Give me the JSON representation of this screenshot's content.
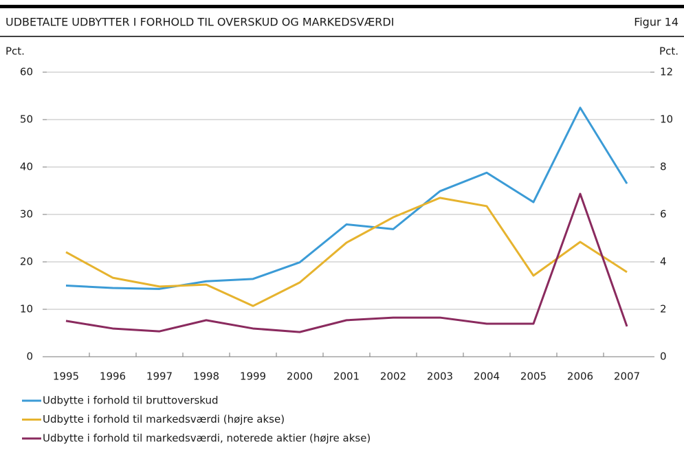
{
  "chart_data": {
    "type": "line",
    "title": "UDBETALTE UDBYTTER I FORHOLD TIL OVERSKUD OG MARKEDSVÆRDI",
    "figure_label": "Figur 14",
    "y_label": "Pct.",
    "y2_label": "Pct.",
    "categories": [
      "1995",
      "1996",
      "1997",
      "1998",
      "1999",
      "2000",
      "2001",
      "2002",
      "2003",
      "2004",
      "2005",
      "2006",
      "2007"
    ],
    "series": [
      {
        "name": "Udbytte i forhold til bruttoverskud",
        "color": "#3b9bd6",
        "values": [
          15.0,
          14.5,
          14.3,
          15.9,
          16.4,
          19.9,
          27.9,
          26.9,
          34.9,
          38.8,
          32.6,
          52.5,
          36.5
        ]
      },
      {
        "name": "Udbytte i forhold til markedsværdi (højre akse)",
        "color": "#e6b32e",
        "axis": "y2",
        "values": [
          4.41,
          3.33,
          2.96,
          3.04,
          2.14,
          3.13,
          4.81,
          5.88,
          6.7,
          6.35,
          3.42,
          4.84,
          3.57
        ]
      },
      {
        "name": "Udbytte i forhold til markedsværdi, noterede aktier (højre akse)",
        "color": "#8a2a5e",
        "axis": "y2",
        "values": [
          1.51,
          1.19,
          1.07,
          1.54,
          1.19,
          1.04,
          1.54,
          1.65,
          1.65,
          1.39,
          1.39,
          6.87,
          1.28
        ]
      }
    ],
    "ylim": [
      0,
      60
    ],
    "yticks": [
      0,
      10,
      20,
      30,
      40,
      50,
      60
    ],
    "y2lim": [
      0,
      12
    ],
    "y2ticks": [
      0,
      2,
      4,
      6,
      8,
      10,
      12
    ],
    "grid": true
  }
}
